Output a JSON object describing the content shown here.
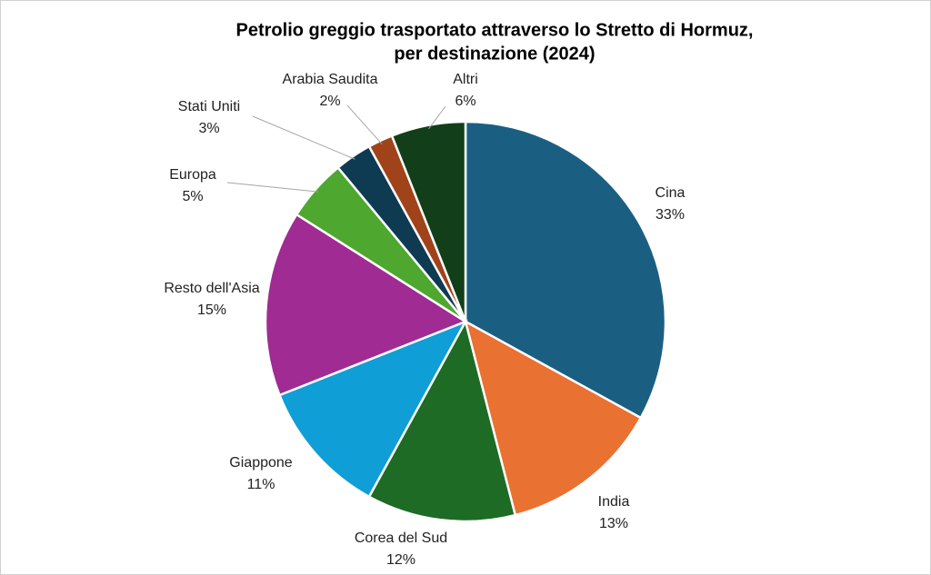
{
  "chart_data": {
    "type": "pie",
    "title": [
      "Petrolio greggio trasportato attraverso lo Stretto di Hormuz,",
      "per destinazione (2024)"
    ],
    "categories": [
      "Cina",
      "India",
      "Corea del Sud",
      "Giappone",
      "Resto dell'Asia",
      "Europa",
      "Stati Uniti",
      "Arabia Saudita",
      "Altri"
    ],
    "values": [
      33,
      13,
      12,
      11,
      15,
      5,
      3,
      2,
      6
    ],
    "value_labels": [
      "33%",
      "13%",
      "12%",
      "11%",
      "15%",
      "5%",
      "3%",
      "2%",
      "6%"
    ],
    "colors": [
      "#1a5f82",
      "#e97132",
      "#1d6b25",
      "#0f9ed5",
      "#a02b93",
      "#4ea72e",
      "#0e3a52",
      "#a0421a",
      "#123f1a"
    ]
  }
}
